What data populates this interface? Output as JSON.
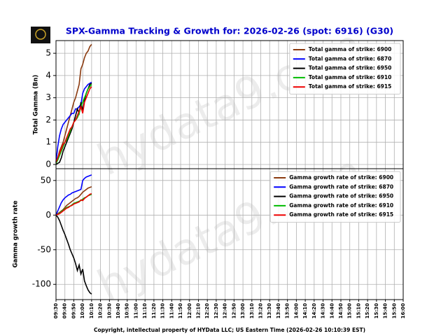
{
  "title": "SPX-Gamma Tracking & Growth for: 2026-02-26 (spot: 6916) (G30)",
  "footer": "Copyright, intellectual property of HYData LLC; US Eastern Time (2026-02-26 10:10:39 EST)",
  "watermark": "hydata9.com",
  "chart_data": [
    {
      "type": "line",
      "ylabel": "Total Gamma (Bn)",
      "legend": "upper right",
      "grid": true,
      "xlim": [
        570,
        960
      ],
      "ylim": [
        -0.19,
        5.57
      ],
      "yticks": [
        0,
        1,
        2,
        3,
        4,
        5
      ],
      "x": [
        570,
        572,
        574,
        576,
        578,
        580,
        582,
        584,
        586,
        588,
        590,
        592,
        594,
        596,
        598,
        600,
        602,
        604,
        606,
        608,
        610
      ],
      "series": [
        {
          "name": "Total gamma of strike: 6900",
          "color": "#8b3a0f",
          "values": [
            0.05,
            0.3,
            0.6,
            0.8,
            1.0,
            1.3,
            1.6,
            1.9,
            2.2,
            2.5,
            2.8,
            3.0,
            3.3,
            3.6,
            4.3,
            4.5,
            4.8,
            5.0,
            5.1,
            5.3,
            5.4
          ]
        },
        {
          "name": "Total gamma of strike: 6870",
          "color": "#0000ff",
          "values": [
            0.1,
            0.8,
            1.3,
            1.6,
            1.8,
            1.9,
            2.0,
            2.1,
            2.2,
            2.3,
            2.3,
            2.5,
            2.5,
            2.6,
            2.7,
            3.2,
            3.4,
            3.5,
            3.6,
            3.65,
            3.7
          ]
        },
        {
          "name": "Total gamma of strike: 6950",
          "color": "#000000",
          "values": [
            0,
            0.05,
            0.1,
            0.3,
            0.6,
            0.8,
            1.0,
            1.2,
            1.4,
            1.6,
            1.9,
            2.2,
            2.5,
            2.3,
            2.8,
            2.4,
            2.9,
            3.2,
            3.4,
            3.6,
            3.65
          ]
        },
        {
          "name": "Total gamma of strike: 6910",
          "color": "#00bb00",
          "values": [
            0.05,
            0.2,
            0.4,
            0.6,
            0.8,
            1.0,
            1.1,
            1.3,
            1.5,
            1.7,
            1.9,
            2.0,
            2.1,
            2.3,
            2.6,
            2.8,
            3.0,
            3.2,
            3.4,
            3.5,
            3.6
          ]
        },
        {
          "name": "Total gamma of strike: 6915",
          "color": "#ee0000",
          "values": [
            0.1,
            0.3,
            0.5,
            0.7,
            0.9,
            1.0,
            1.2,
            1.4,
            1.6,
            1.7,
            1.9,
            2.0,
            2.2,
            2.4,
            2.6,
            2.3,
            2.8,
            3.0,
            3.2,
            3.4,
            3.5
          ]
        }
      ]
    },
    {
      "type": "line",
      "ylabel": "Gamma growth rate",
      "legend": "upper right",
      "grid": true,
      "xlim": [
        570,
        960
      ],
      "ylim": [
        -122,
        67
      ],
      "yticks": [
        -100,
        -50,
        0,
        50
      ],
      "xticks": [
        {
          "value": 570,
          "label": "09:30"
        },
        {
          "value": 580,
          "label": "09:40"
        },
        {
          "value": 590,
          "label": "09:50"
        },
        {
          "value": 600,
          "label": "10:00"
        },
        {
          "value": 610,
          "label": "10:10"
        },
        {
          "value": 620,
          "label": "10:20"
        },
        {
          "value": 630,
          "label": "10:30"
        },
        {
          "value": 640,
          "label": "10:40"
        },
        {
          "value": 650,
          "label": "10:50"
        },
        {
          "value": 660,
          "label": "11:00"
        },
        {
          "value": 670,
          "label": "11:10"
        },
        {
          "value": 680,
          "label": "11:20"
        },
        {
          "value": 690,
          "label": "11:30"
        },
        {
          "value": 700,
          "label": "11:40"
        },
        {
          "value": 710,
          "label": "11:50"
        },
        {
          "value": 720,
          "label": "12:00"
        },
        {
          "value": 730,
          "label": "12:10"
        },
        {
          "value": 740,
          "label": "12:20"
        },
        {
          "value": 750,
          "label": "12:30"
        },
        {
          "value": 760,
          "label": "12:40"
        },
        {
          "value": 770,
          "label": "12:50"
        },
        {
          "value": 780,
          "label": "13:00"
        },
        {
          "value": 790,
          "label": "13:10"
        },
        {
          "value": 800,
          "label": "13:20"
        },
        {
          "value": 810,
          "label": "13:30"
        },
        {
          "value": 820,
          "label": "13:40"
        },
        {
          "value": 830,
          "label": "13:50"
        },
        {
          "value": 840,
          "label": "14:00"
        },
        {
          "value": 850,
          "label": "14:10"
        },
        {
          "value": 860,
          "label": "14:20"
        },
        {
          "value": 870,
          "label": "14:30"
        },
        {
          "value": 880,
          "label": "14:40"
        },
        {
          "value": 890,
          "label": "14:50"
        },
        {
          "value": 900,
          "label": "15:00"
        },
        {
          "value": 910,
          "label": "15:10"
        },
        {
          "value": 920,
          "label": "15:20"
        },
        {
          "value": 930,
          "label": "15:30"
        },
        {
          "value": 940,
          "label": "15:40"
        },
        {
          "value": 950,
          "label": "15:50"
        },
        {
          "value": 960,
          "label": "16:00"
        }
      ],
      "x": [
        570,
        572,
        574,
        576,
        578,
        580,
        582,
        584,
        586,
        588,
        590,
        592,
        594,
        596,
        598,
        600,
        602,
        604,
        606,
        608,
        610
      ],
      "series": [
        {
          "name": "Gamma growth rate of strike: 6900",
          "color": "#8b3a0f",
          "values": [
            0,
            2,
            4,
            6,
            8,
            11,
            14,
            16,
            18,
            20,
            22,
            24,
            25,
            27,
            30,
            33,
            35,
            37,
            39,
            40,
            41
          ]
        },
        {
          "name": "Gamma growth rate of strike: 6870",
          "color": "#0000ff",
          "values": [
            0,
            6,
            12,
            18,
            22,
            25,
            27,
            29,
            30,
            32,
            33,
            34,
            35,
            36,
            37,
            50,
            53,
            55,
            56,
            57,
            58
          ]
        },
        {
          "name": "Gamma growth rate of strike: 6950",
          "color": "#000000",
          "values": [
            0,
            -3,
            -8,
            -15,
            -22,
            -28,
            -35,
            -42,
            -50,
            -56,
            -62,
            -70,
            -80,
            -72,
            -85,
            -78,
            -95,
            -102,
            -108,
            -112,
            -114
          ]
        },
        {
          "name": "Gamma growth rate of strike: 6910",
          "color": "#00bb00",
          "values": [
            0,
            1,
            3,
            5,
            7,
            9,
            11,
            12,
            13,
            15,
            17,
            18,
            19,
            20,
            21,
            23,
            25,
            26,
            28,
            29,
            30
          ]
        },
        {
          "name": "Gamma growth rate of strike: 6915",
          "color": "#ee0000",
          "values": [
            0,
            1,
            2,
            4,
            6,
            8,
            10,
            11,
            13,
            14,
            16,
            17,
            18,
            19,
            22,
            21,
            24,
            26,
            28,
            30,
            31
          ]
        }
      ]
    }
  ]
}
